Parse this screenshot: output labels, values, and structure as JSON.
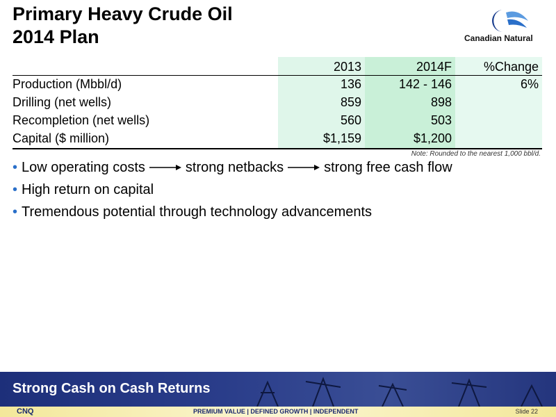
{
  "header": {
    "title_lines": [
      "Primary Heavy Crude Oil",
      "2014 Plan"
    ],
    "logo_text": "Canadian Natural"
  },
  "table": {
    "columns": [
      "2013",
      "2014F",
      "%Change"
    ],
    "rows": [
      {
        "label": "Production (Mbbl/d)",
        "cells": [
          "136",
          "142 - 146",
          "6%"
        ]
      },
      {
        "label": "Drilling (net wells)",
        "cells": [
          "859",
          "898"
        ]
      },
      {
        "label": "Recompletion (net wells)",
        "cells": [
          "560",
          "503"
        ]
      },
      {
        "label": "Capital ($ million)",
        "cells": [
          "$1,159",
          "$1,200"
        ]
      }
    ],
    "note": "Note: Rounded to the nearest 1,000 bbl/d."
  },
  "bullets": [
    [
      "Low operating costs",
      "strong netbacks",
      "strong free cash flow"
    ],
    [
      "High return on capital"
    ],
    [
      "Tremendous potential through technology advancements"
    ]
  ],
  "footer": {
    "banner": "Strong Cash on Cash Returns",
    "ticker": "CNQ",
    "tagline": "PREMIUM VALUE | DEFINED GROWTH | INDEPENDENT",
    "slide": "Slide 22"
  }
}
